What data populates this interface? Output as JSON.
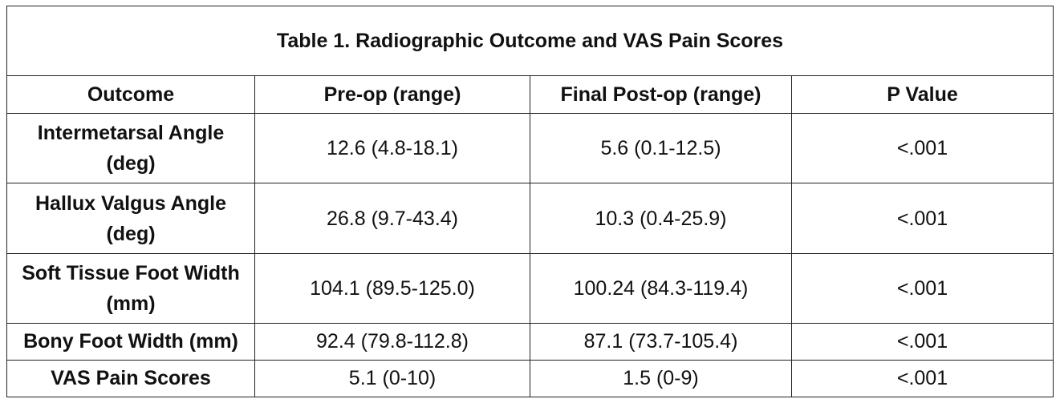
{
  "table": {
    "title": "Table 1. Radiographic Outcome and VAS Pain Scores",
    "headers": [
      "Outcome",
      "Pre-op (range)",
      "Final Post-op (range)",
      "P Value"
    ],
    "rows": [
      {
        "outcome_line1": "Intermetarsal Angle",
        "outcome_line2": "(deg)",
        "preop": "12.6 (4.8-18.1)",
        "postop": "5.6 (0.1-12.5)",
        "p": "<.001"
      },
      {
        "outcome_line1": "Hallux Valgus Angle",
        "outcome_line2": "(deg)",
        "preop": "26.8 (9.7-43.4)",
        "postop": "10.3 (0.4-25.9)",
        "p": "<.001"
      },
      {
        "outcome_line1": "Soft Tissue Foot Width",
        "outcome_line2": "(mm)",
        "preop": "104.1 (89.5-125.0)",
        "postop": "100.24 (84.3-119.4)",
        "p": "<.001"
      },
      {
        "outcome_line1": "Bony Foot Width (mm)",
        "preop": "92.4 (79.8-112.8)",
        "postop": "87.1 (73.7-105.4)",
        "p": "<.001"
      },
      {
        "outcome_line1": "VAS Pain Scores",
        "preop": "5.1 (0-10)",
        "postop": "1.5 (0-9)",
        "p": "<.001"
      }
    ]
  }
}
